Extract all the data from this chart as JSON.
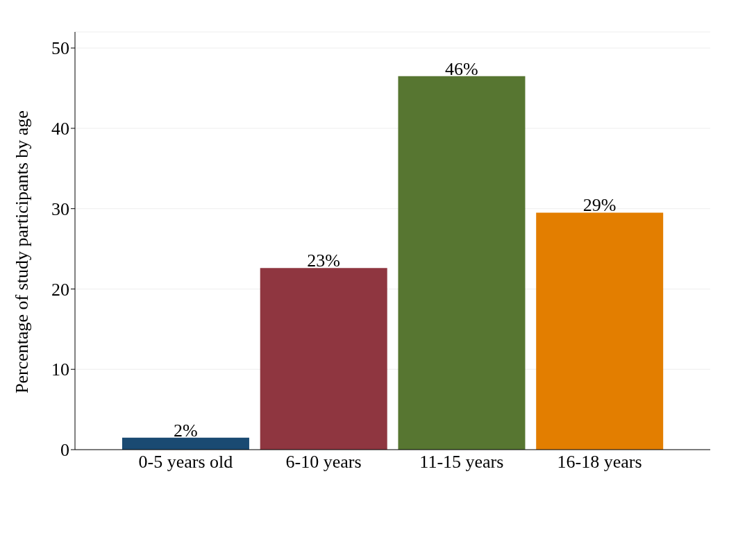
{
  "chart_data": {
    "type": "bar",
    "ylabel": "Percentage of study participants by age",
    "categories": [
      "0-5 years old",
      "6-10 years",
      "11-15 years",
      "16-18 years"
    ],
    "values": [
      1.5,
      22.6,
      46.5,
      29.5
    ],
    "colors": [
      "#1a4a72",
      "#8f3640",
      "#577631",
      "#e37e00"
    ],
    "value_labels": [
      "2%",
      "23%",
      "46%",
      "29%"
    ],
    "ylim": [
      0,
      52
    ],
    "yticks": [
      0,
      10,
      20,
      30,
      40,
      50
    ],
    "grid": "y"
  }
}
